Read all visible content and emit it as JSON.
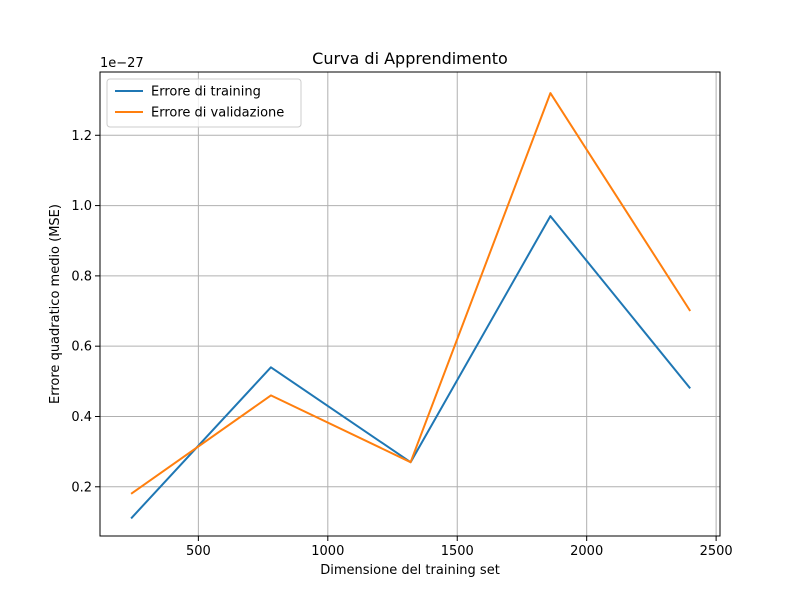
{
  "chart_data": {
    "type": "line",
    "title": "Curva di Apprendimento",
    "xlabel": "Dimensione del training set",
    "ylabel": "Errore quadratico medio (MSE)",
    "y_offset_label": "1e−27",
    "xlim": [
      120,
      2515
    ],
    "ylim": [
      0.06,
      1.38
    ],
    "xticks": [
      500,
      1000,
      1500,
      2000,
      2500
    ],
    "yticks": [
      0.2,
      0.4,
      0.6,
      0.8,
      1.0,
      1.2
    ],
    "xtick_labels": [
      "500",
      "1000",
      "1500",
      "2000",
      "2500"
    ],
    "ytick_labels": [
      "0.2",
      "0.4",
      "0.6",
      "0.8",
      "1.0",
      "1.2"
    ],
    "grid": true,
    "legend_position": "top-left",
    "x": [
      240,
      780,
      1320,
      1860,
      2400
    ],
    "series": [
      {
        "name": "Errore di training",
        "color": "#1f77b4",
        "values": [
          0.11,
          0.54,
          0.27,
          0.97,
          0.48
        ]
      },
      {
        "name": "Errore di validazione",
        "color": "#ff7f0e",
        "values": [
          0.18,
          0.46,
          0.27,
          1.32,
          0.7
        ]
      }
    ]
  }
}
